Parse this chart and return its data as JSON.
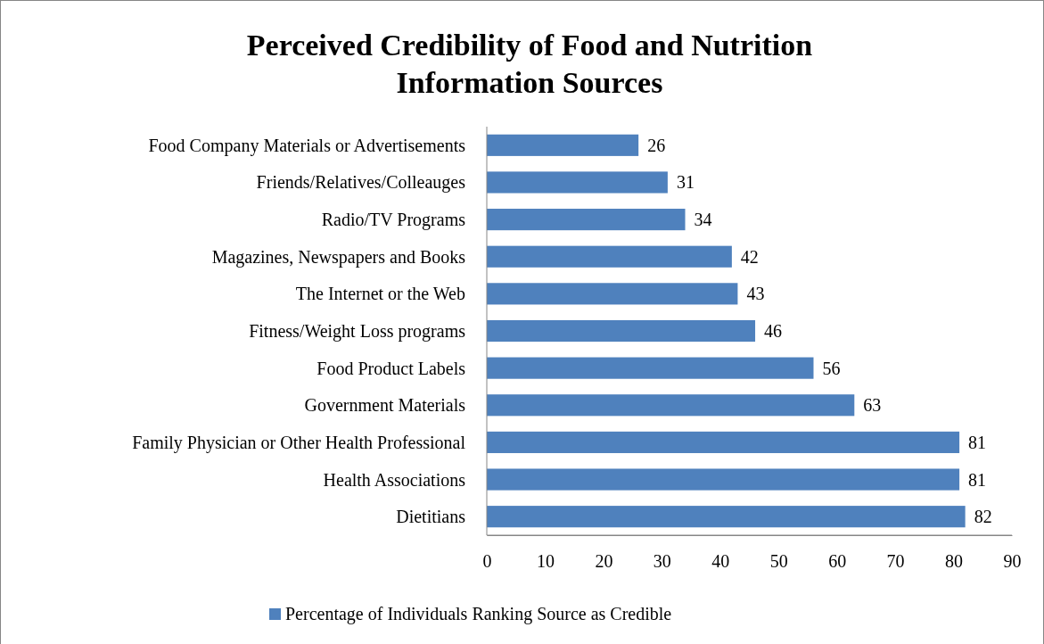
{
  "chart_data": {
    "type": "bar",
    "orientation": "horizontal",
    "title": "Perceived Credibility of Food and Nutrition Information Sources",
    "categories": [
      "Food Company Materials or Advertisements",
      "Friends/Relatives/Colleauges",
      "Radio/TV Programs",
      "Magazines, Newspapers and Books",
      "The Internet or the Web",
      "Fitness/Weight Loss programs",
      "Food Product Labels",
      "Government Materials",
      "Family Physician or Other Health Professional",
      "Health Associations",
      "Dietitians"
    ],
    "series": [
      {
        "name": "Percentage of Individuals Ranking Source as Credible",
        "color": "#4f81bd",
        "values": [
          26,
          31,
          34,
          42,
          43,
          46,
          56,
          63,
          81,
          81,
          82
        ]
      }
    ],
    "xlim": [
      0,
      90
    ],
    "xticks": [
      0,
      10,
      20,
      30,
      40,
      50,
      60,
      70,
      80,
      90
    ],
    "data_labels": true,
    "legend": "bottom",
    "grid": false
  }
}
